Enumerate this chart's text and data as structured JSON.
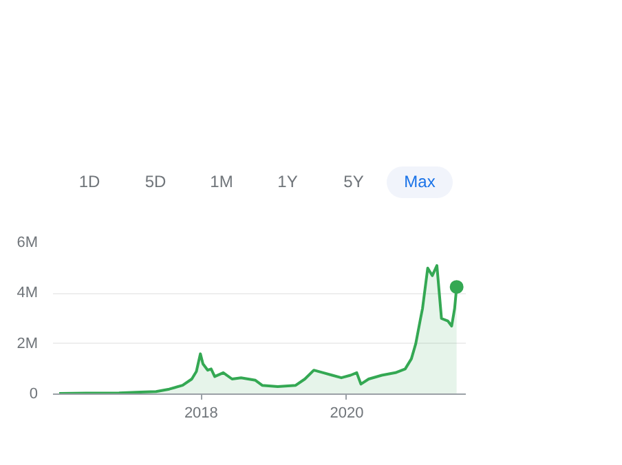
{
  "chart_data": {
    "type": "area",
    "annotations": [
      "1D",
      "5D",
      "1M",
      "1Y",
      "5Y",
      "Max"
    ],
    "series": [
      {
        "color": "#34a853",
        "x": [
          "2016-01-20",
          "2016-06-01",
          "2016-11-15",
          "2017-03-01",
          "2017-05-20",
          "2017-07-25",
          "2017-09-30",
          "2017-11-15",
          "2017-12-08",
          "2017-12-28",
          "2018-01-10",
          "2018-02-03",
          "2018-02-20",
          "2018-03-10",
          "2018-04-22",
          "2018-06-05",
          "2018-07-20",
          "2018-09-30",
          "2018-11-03",
          "2019-01-20",
          "2019-04-20",
          "2019-06-05",
          "2019-07-20",
          "2019-09-05",
          "2019-10-20",
          "2019-12-05",
          "2020-01-20",
          "2020-02-20",
          "2020-03-12",
          "2020-04-20",
          "2020-06-25",
          "2020-09-01",
          "2020-10-20",
          "2020-11-20",
          "2020-12-12",
          "2021-01-05",
          "2021-01-15",
          "2021-02-10",
          "2021-03-05",
          "2021-03-28",
          "2021-04-20",
          "2021-05-22",
          "2021-06-10",
          "2021-06-25",
          "2021-07-05"
        ],
        "values": [
          30000,
          40000,
          50000,
          80000,
          100000,
          200000,
          350000,
          600000,
          900000,
          1600000,
          1200000,
          950000,
          1000000,
          700000,
          850000,
          600000,
          650000,
          550000,
          350000,
          300000,
          350000,
          600000,
          950000,
          850000,
          750000,
          650000,
          750000,
          850000,
          400000,
          600000,
          750000,
          850000,
          1000000,
          1400000,
          2000000,
          3000000,
          3400000,
          5000000,
          4700000,
          5100000,
          3000000,
          2900000,
          2700000,
          3400000,
          4250000
        ]
      },
      {
        "type": "scatter",
        "color": "#34a853",
        "marker": "circle",
        "x": [
          "2021-07-05"
        ],
        "values": [
          4250000
        ]
      }
    ],
    "xlim": [
      "2015-12-20",
      "2021-08-20"
    ],
    "xticks": [
      {
        "value": "2018-01-01",
        "label": "2018"
      },
      {
        "value": "2020-01-01",
        "label": "2020"
      }
    ],
    "ylim": [
      0,
      6000000
    ],
    "yticks": [
      {
        "value": 0,
        "label": "0"
      },
      {
        "value": 2000000,
        "label": "2M"
      },
      {
        "value": 4000000,
        "label": "4M"
      },
      {
        "value": 6000000,
        "label": "6M"
      }
    ],
    "grid": "y"
  }
}
